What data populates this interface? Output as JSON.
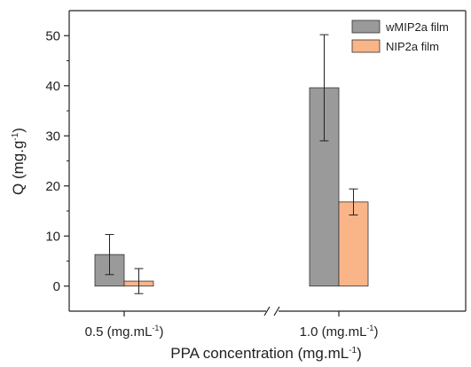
{
  "chart_data": {
    "type": "bar",
    "categories": [
      "0.5 (mg.mL",
      "1.0 (mg.mL"
    ],
    "category_superscript": "-1",
    "category_suffix": ")",
    "axis_break_between_categories": true,
    "series": [
      {
        "name": "wMIP2a film",
        "values": [
          6.3,
          39.6
        ],
        "errors": [
          4.0,
          10.6
        ],
        "color": "#9a9a9a"
      },
      {
        "name": "NIP2a film",
        "values": [
          1.0,
          16.8
        ],
        "errors": [
          2.5,
          2.6
        ],
        "color": "#f9b488"
      }
    ],
    "ylabel": {
      "main": "Q (mg.g",
      "sup": "-1",
      "end": ")"
    },
    "xlabel": {
      "main": "PPA concentration (mg.mL",
      "sup": "-1",
      "end": ")"
    },
    "ylim": [
      -5,
      55
    ],
    "yticks": [
      "0",
      "10",
      "20",
      "30",
      "40",
      "50"
    ],
    "grid": false,
    "legend_position": "top-right"
  }
}
